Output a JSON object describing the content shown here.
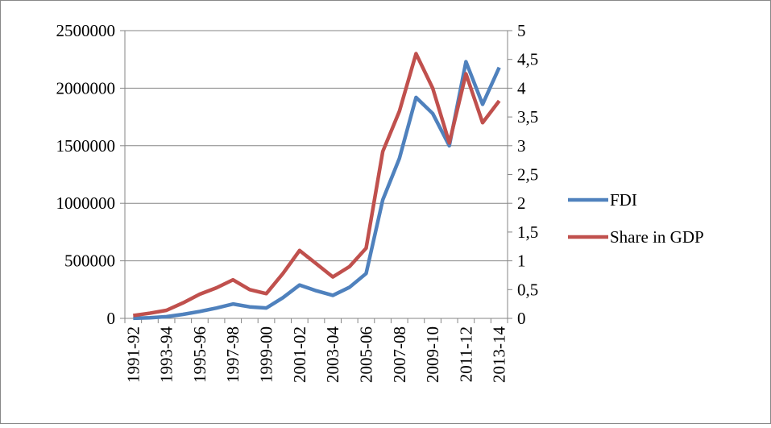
{
  "chart_data": {
    "type": "line",
    "categories": [
      "1991-92",
      null,
      "1993-94",
      null,
      "1995-96",
      null,
      "1997-98",
      null,
      "1999-00",
      null,
      "2001-02",
      null,
      "2003-04",
      null,
      "2005-06",
      null,
      "2007-08",
      null,
      "2009-10",
      null,
      "2011-12",
      null,
      "2013-14"
    ],
    "series": [
      {
        "name": "FDI",
        "color": "#4f81bd",
        "values": [
          1000,
          5000,
          15000,
          35000,
          60000,
          90000,
          125000,
          100000,
          90000,
          180000,
          290000,
          240000,
          200000,
          270000,
          390000,
          1030000,
          1390000,
          1920000,
          1780000,
          1500000,
          2230000,
          1860000,
          2180000
        ]
      },
      {
        "name": "Share in GDP",
        "color": "#c0504d",
        "axis": "y2",
        "values": [
          0.05,
          0.09,
          0.14,
          0.27,
          0.42,
          0.53,
          0.67,
          0.5,
          0.43,
          0.78,
          1.18,
          0.95,
          0.72,
          0.9,
          1.22,
          2.9,
          3.6,
          4.6,
          4.0,
          3.05,
          4.25,
          3.4,
          3.78
        ]
      }
    ],
    "ylim": [
      0,
      2500000
    ],
    "yticks": [
      0,
      500000,
      1000000,
      1500000,
      2000000,
      2500000
    ],
    "y2lim": [
      0,
      5
    ],
    "y2ticks": [
      0,
      {
        "value": 0.5,
        "label": "0,5"
      },
      1,
      {
        "value": 1.5,
        "label": "1,5"
      },
      2,
      {
        "value": 2.5,
        "label": "2,5"
      },
      3,
      {
        "value": 3.5,
        "label": "3,5"
      },
      4,
      {
        "value": 4.5,
        "label": "4,5"
      },
      5
    ],
    "grid": true,
    "legend": "right"
  }
}
